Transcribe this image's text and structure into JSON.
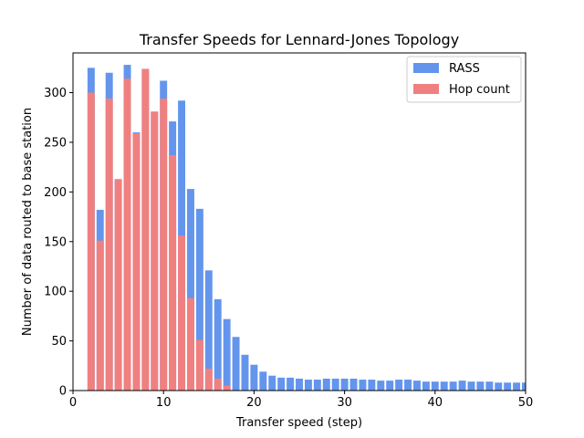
{
  "chart_data": {
    "type": "bar",
    "title": "Transfer Speeds for Lennard-Jones Topology",
    "xlabel": "Transfer speed (step)",
    "ylabel": "Number of data routed to base station",
    "xlim": [
      0,
      50
    ],
    "ylim": [
      0,
      340
    ],
    "xticks": [
      0,
      10,
      20,
      30,
      40,
      50
    ],
    "yticks": [
      0,
      50,
      100,
      150,
      200,
      250,
      300
    ],
    "grid": false,
    "legend_position": "top-right",
    "x": [
      2,
      3,
      4,
      5,
      6,
      7,
      8,
      9,
      10,
      11,
      12,
      13,
      14,
      15,
      16,
      17,
      18,
      19,
      20,
      21,
      22,
      23,
      24,
      25,
      26,
      27,
      28,
      29,
      30,
      31,
      32,
      33,
      34,
      35,
      36,
      37,
      38,
      39,
      40,
      41,
      42,
      43,
      44,
      45,
      46,
      47,
      48,
      49,
      50
    ],
    "series": [
      {
        "name": "RASS",
        "color": "#6495ED",
        "values": [
          325,
          182,
          320,
          212,
          328,
          260,
          322,
          280,
          312,
          271,
          292,
          203,
          183,
          121,
          92,
          72,
          54,
          36,
          26,
          19,
          15,
          13,
          13,
          12,
          11,
          11,
          12,
          12,
          12,
          12,
          11,
          11,
          10,
          10,
          11,
          11,
          10,
          9,
          9,
          9,
          9,
          10,
          9,
          9,
          9,
          8,
          8,
          8,
          8
        ]
      },
      {
        "name": "Hop count",
        "color": "#F08080",
        "values": [
          300,
          151,
          294,
          213,
          314,
          259,
          324,
          281,
          294,
          237,
          156,
          93,
          51,
          22,
          12,
          5,
          0,
          0,
          0,
          0,
          0,
          0,
          0,
          0,
          0,
          0,
          0,
          0,
          0,
          0,
          0,
          0,
          0,
          0,
          0,
          0,
          0,
          0,
          0,
          0,
          0,
          0,
          0,
          0,
          0,
          0,
          0,
          0,
          0
        ]
      }
    ]
  }
}
